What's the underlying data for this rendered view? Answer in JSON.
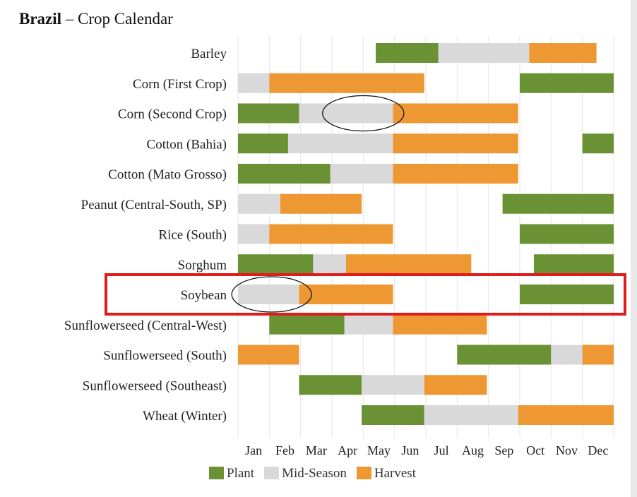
{
  "title": {
    "country": "Brazil",
    "dash": "–",
    "subtitle": "Crop Calendar"
  },
  "colors": {
    "plant": "#6a9235",
    "mid": "#d9d9d9",
    "harvest": "#ee9834",
    "grid": "#e6e6e6",
    "highlight": "#e01b1b"
  },
  "chart_data": {
    "type": "bar",
    "subtype": "gantt",
    "months": [
      "Jan",
      "Feb",
      "Mar",
      "Apr",
      "May",
      "Jun",
      "Jul",
      "Aug",
      "Sep",
      "Oct",
      "Nov",
      "Dec"
    ],
    "legend": [
      {
        "key": "plant",
        "label": "Plant"
      },
      {
        "key": "mid",
        "label": "Mid-Season"
      },
      {
        "key": "harvest",
        "label": "Harvest"
      }
    ],
    "crops": [
      {
        "name": "Barley",
        "segments": [
          {
            "phase": "plant",
            "start": 5.4,
            "end": 7.4
          },
          {
            "phase": "mid",
            "start": 7.4,
            "end": 10.3
          },
          {
            "phase": "harvest",
            "start": 10.3,
            "end": 12.45
          }
        ]
      },
      {
        "name": "Corn (First Crop)",
        "segments": [
          {
            "phase": "mid",
            "start": 1.0,
            "end": 2.0
          },
          {
            "phase": "harvest",
            "start": 2.0,
            "end": 6.95
          },
          {
            "phase": "plant",
            "start": 10.0,
            "end": 13.0
          }
        ]
      },
      {
        "name": "Corn (Second Crop)",
        "segments": [
          {
            "phase": "plant",
            "start": 1.0,
            "end": 2.95
          },
          {
            "phase": "mid",
            "start": 2.95,
            "end": 5.95
          },
          {
            "phase": "harvest",
            "start": 5.95,
            "end": 9.95
          }
        ]
      },
      {
        "name": "Cotton (Bahia)",
        "segments": [
          {
            "phase": "plant",
            "start": 1.0,
            "end": 2.6
          },
          {
            "phase": "mid",
            "start": 2.6,
            "end": 5.95
          },
          {
            "phase": "harvest",
            "start": 5.95,
            "end": 9.95
          },
          {
            "phase": "plant",
            "start": 12.0,
            "end": 13.0
          }
        ]
      },
      {
        "name": "Cotton (Mato Grosso)",
        "segments": [
          {
            "phase": "plant",
            "start": 1.0,
            "end": 3.95
          },
          {
            "phase": "mid",
            "start": 3.95,
            "end": 5.95
          },
          {
            "phase": "harvest",
            "start": 5.95,
            "end": 9.95
          }
        ]
      },
      {
        "name": "Peanut (Central-South, SP)",
        "segments": [
          {
            "phase": "mid",
            "start": 1.0,
            "end": 2.35
          },
          {
            "phase": "harvest",
            "start": 2.35,
            "end": 4.95
          },
          {
            "phase": "plant",
            "start": 9.45,
            "end": 13.0
          }
        ]
      },
      {
        "name": "Rice (South)",
        "segments": [
          {
            "phase": "mid",
            "start": 1.0,
            "end": 2.0
          },
          {
            "phase": "harvest",
            "start": 2.0,
            "end": 5.95
          },
          {
            "phase": "plant",
            "start": 10.0,
            "end": 13.0
          }
        ]
      },
      {
        "name": "Sorghum",
        "segments": [
          {
            "phase": "plant",
            "start": 1.0,
            "end": 3.4
          },
          {
            "phase": "mid",
            "start": 3.4,
            "end": 4.45
          },
          {
            "phase": "harvest",
            "start": 4.45,
            "end": 8.45
          },
          {
            "phase": "plant",
            "start": 10.45,
            "end": 13.0
          }
        ]
      },
      {
        "name": "Soybean",
        "highlight": true,
        "segments": [
          {
            "phase": "mid",
            "start": 1.0,
            "end": 2.95
          },
          {
            "phase": "harvest",
            "start": 2.95,
            "end": 5.95
          },
          {
            "phase": "plant",
            "start": 10.0,
            "end": 13.0
          }
        ]
      },
      {
        "name": "Sunflowerseed (Central-West)",
        "segments": [
          {
            "phase": "plant",
            "start": 2.0,
            "end": 4.4
          },
          {
            "phase": "mid",
            "start": 4.4,
            "end": 5.95
          },
          {
            "phase": "harvest",
            "start": 5.95,
            "end": 8.95
          }
        ]
      },
      {
        "name": "Sunflowerseed (South)",
        "segments": [
          {
            "phase": "harvest",
            "start": 1.0,
            "end": 2.95
          },
          {
            "phase": "plant",
            "start": 8.0,
            "end": 11.0
          },
          {
            "phase": "mid",
            "start": 11.0,
            "end": 12.0
          },
          {
            "phase": "harvest",
            "start": 12.0,
            "end": 13.0
          }
        ]
      },
      {
        "name": "Sunflowerseed (Southeast)",
        "segments": [
          {
            "phase": "plant",
            "start": 2.95,
            "end": 4.95
          },
          {
            "phase": "mid",
            "start": 4.95,
            "end": 6.95
          },
          {
            "phase": "harvest",
            "start": 6.95,
            "end": 8.95
          }
        ]
      },
      {
        "name": "Wheat (Winter)",
        "segments": [
          {
            "phase": "plant",
            "start": 4.95,
            "end": 6.95
          },
          {
            "phase": "mid",
            "start": 6.95,
            "end": 9.95
          },
          {
            "phase": "harvest",
            "start": 9.95,
            "end": 13.0
          }
        ]
      }
    ],
    "annotations": [
      {
        "type": "ellipse",
        "crop": "Corn (Second Crop)",
        "start": 3.7,
        "end": 6.3
      },
      {
        "type": "ellipse",
        "crop": "Soybean",
        "start": 0.8,
        "end": 3.35
      },
      {
        "type": "rectangle",
        "crop": "Soybean"
      }
    ]
  }
}
